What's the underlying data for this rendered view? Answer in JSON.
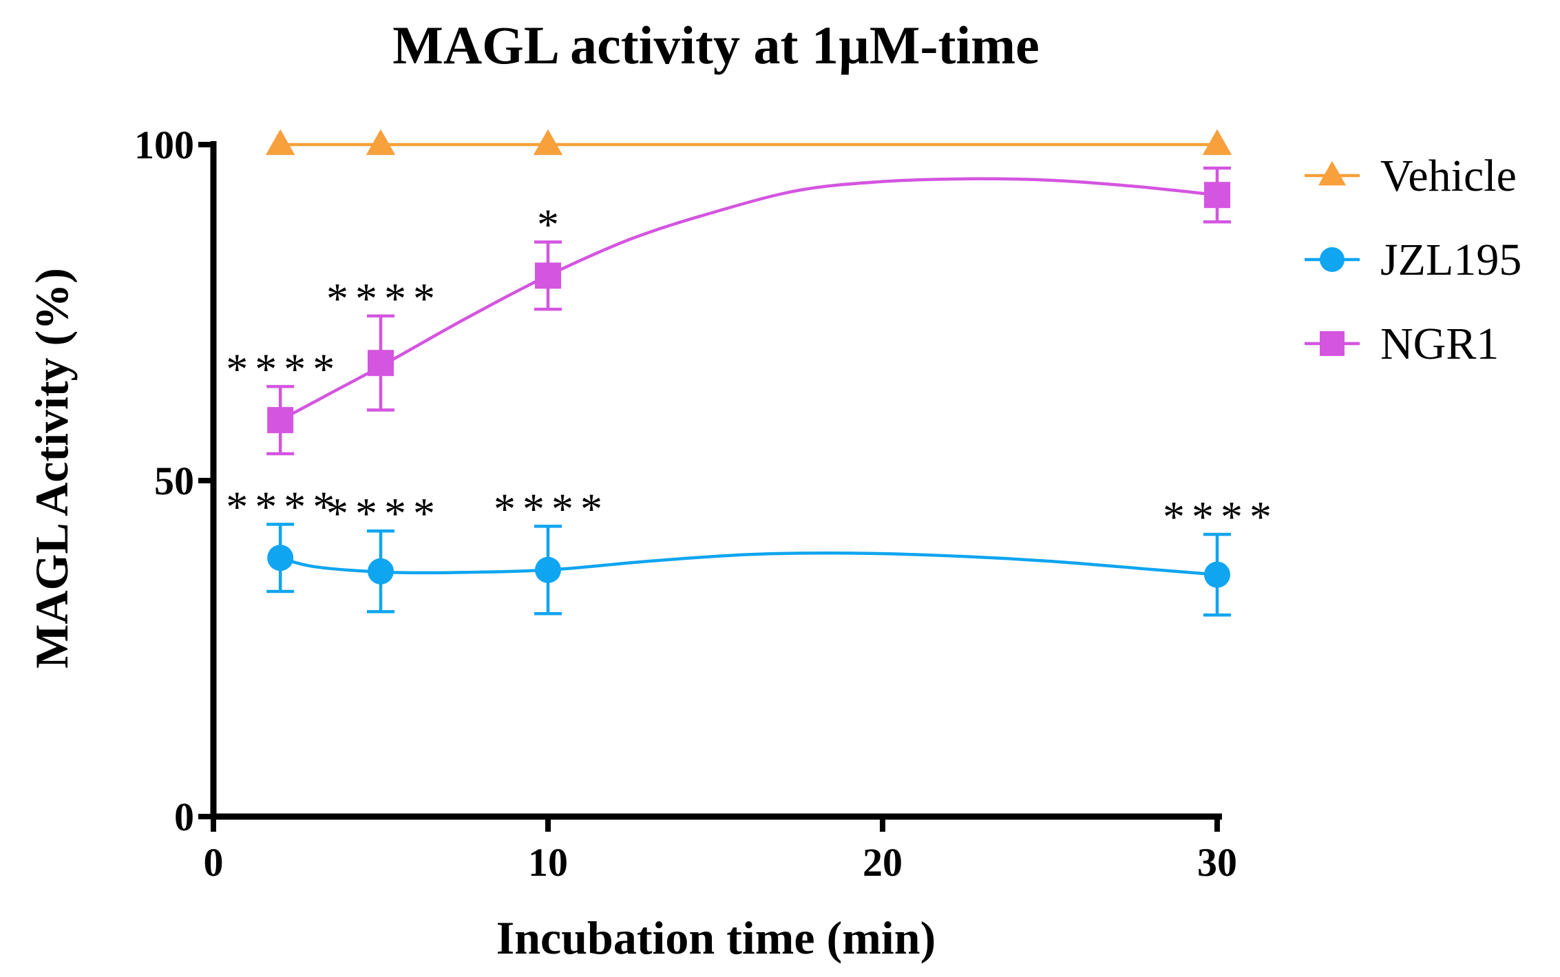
{
  "chart_data": {
    "type": "line",
    "title": "MAGL activity at 1µM-time",
    "xlabel": "Incubation time (min)",
    "ylabel": "MAGL Activity (%)",
    "xlim": [
      0,
      30
    ],
    "ylim": [
      0,
      100
    ],
    "x_ticks": [
      "0",
      "10",
      "20",
      "30"
    ],
    "y_ticks": [
      "0",
      "50",
      "100"
    ],
    "legend_position": "right",
    "series": [
      {
        "name": "Vehicle",
        "color": "#f7a03c",
        "marker": "triangle",
        "x": [
          2,
          5,
          10,
          30
        ],
        "y": [
          100,
          100,
          100,
          100
        ],
        "error": [
          0,
          0,
          0,
          0
        ],
        "annotations": [
          "",
          "",
          "",
          ""
        ],
        "curve": [
          [
            2,
            100
          ],
          [
            30,
            100
          ]
        ]
      },
      {
        "name": "JZL195",
        "color": "#10a5f0",
        "marker": "circle",
        "x": [
          2,
          5,
          10,
          30
        ],
        "y": [
          38.5,
          36.5,
          36.7,
          36
        ],
        "error": [
          5,
          6,
          6.5,
          6
        ],
        "annotations": [
          "****",
          "****",
          "****",
          "****"
        ],
        "curve": [
          [
            2,
            38.5
          ],
          [
            3,
            37.2
          ],
          [
            5,
            36.4
          ],
          [
            7,
            36.3
          ],
          [
            10,
            36.7
          ],
          [
            13,
            38
          ],
          [
            16,
            39
          ],
          [
            19,
            39.2
          ],
          [
            22,
            38.8
          ],
          [
            25,
            38
          ],
          [
            28,
            36.8
          ],
          [
            30,
            36
          ]
        ]
      },
      {
        "name": "NGR1",
        "color": "#d455e0",
        "marker": "square",
        "x": [
          2,
          5,
          10,
          30
        ],
        "y": [
          59,
          67.5,
          80.5,
          92.5
        ],
        "error": [
          5,
          7,
          5,
          4
        ],
        "annotations": [
          "****",
          "****",
          "*",
          ""
        ],
        "curve": [
          [
            2,
            59
          ],
          [
            3.5,
            63
          ],
          [
            5,
            67
          ],
          [
            7.5,
            74
          ],
          [
            10,
            80.5
          ],
          [
            12.5,
            86
          ],
          [
            15,
            90
          ],
          [
            17.5,
            93.2
          ],
          [
            20,
            94.5
          ],
          [
            22.5,
            94.9
          ],
          [
            25,
            94.7
          ],
          [
            27.5,
            93.8
          ],
          [
            30,
            92.5
          ]
        ]
      }
    ]
  }
}
